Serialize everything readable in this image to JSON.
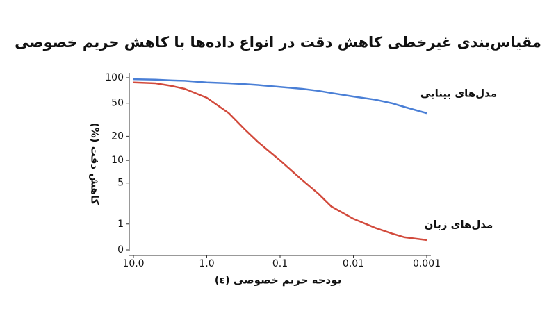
{
  "chart_data": {
    "type": "line",
    "title": "مقیاس‌بندی غیرخطی کاهش دقت در انواع داده‌ها با کاهش حریم خصوصی",
    "x_label": "بودجه حریم خصوصی (ε)",
    "y_label": "کاهش دقت (%)",
    "x": [
      10,
      5,
      3,
      2,
      1,
      0.5,
      0.3,
      0.2,
      0.1,
      0.05,
      0.03,
      0.02,
      0.01,
      0.005,
      0.003,
      0.002,
      0.001
    ],
    "series": [
      {
        "name": "مدل‌های بینایی",
        "color": "#4a7fd6",
        "values": [
          96,
          95,
          93,
          92,
          88,
          86,
          84,
          82,
          78,
          74,
          70,
          66,
          60,
          55,
          50,
          45,
          38
        ]
      },
      {
        "name": "مدل‌های زبان",
        "color": "#d24a3c",
        "values": [
          88,
          86,
          80,
          74,
          58,
          38,
          24,
          17,
          10,
          5.5,
          3.5,
          2.2,
          1.3,
          0.8,
          0.55,
          0.4,
          0.3
        ]
      }
    ],
    "xscale": "log",
    "yscale": "symlog",
    "xlim": [
      10,
      0.001
    ],
    "xticks": [
      {
        "value": 10,
        "label": "10.0"
      },
      {
        "value": 1,
        "label": "1.0"
      },
      0.1,
      0.01,
      0.001
    ],
    "ylim": [
      0,
      100
    ],
    "yticks": [
      0,
      1,
      5,
      10,
      20,
      50,
      100
    ]
  }
}
